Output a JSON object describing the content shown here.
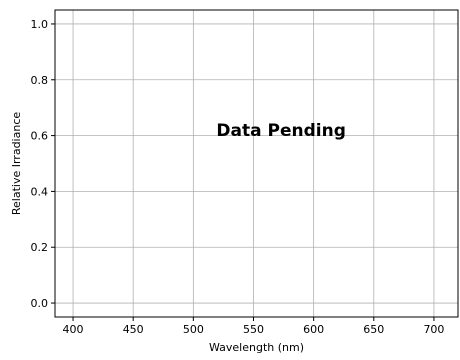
{
  "chart_data": {
    "type": "line",
    "title": "",
    "xlabel": "Wavelength (nm)",
    "ylabel": "Relative Irradiance",
    "xlim": [
      385,
      720
    ],
    "ylim": [
      -0.05,
      1.05
    ],
    "x_ticks": [
      400,
      450,
      500,
      550,
      600,
      650,
      700
    ],
    "y_ticks": [
      0.0,
      0.2,
      0.4,
      0.6,
      0.8,
      1.0
    ],
    "y_tick_labels": [
      "0.0",
      "0.2",
      "0.4",
      "0.6",
      "0.8",
      "1.0"
    ],
    "grid": true,
    "series": [],
    "annotation": {
      "text": "Data Pending",
      "x": 573,
      "y": 0.62
    }
  },
  "colors": {
    "grid": "#b0b0b0",
    "axes": "#000000",
    "background": "#ffffff"
  }
}
